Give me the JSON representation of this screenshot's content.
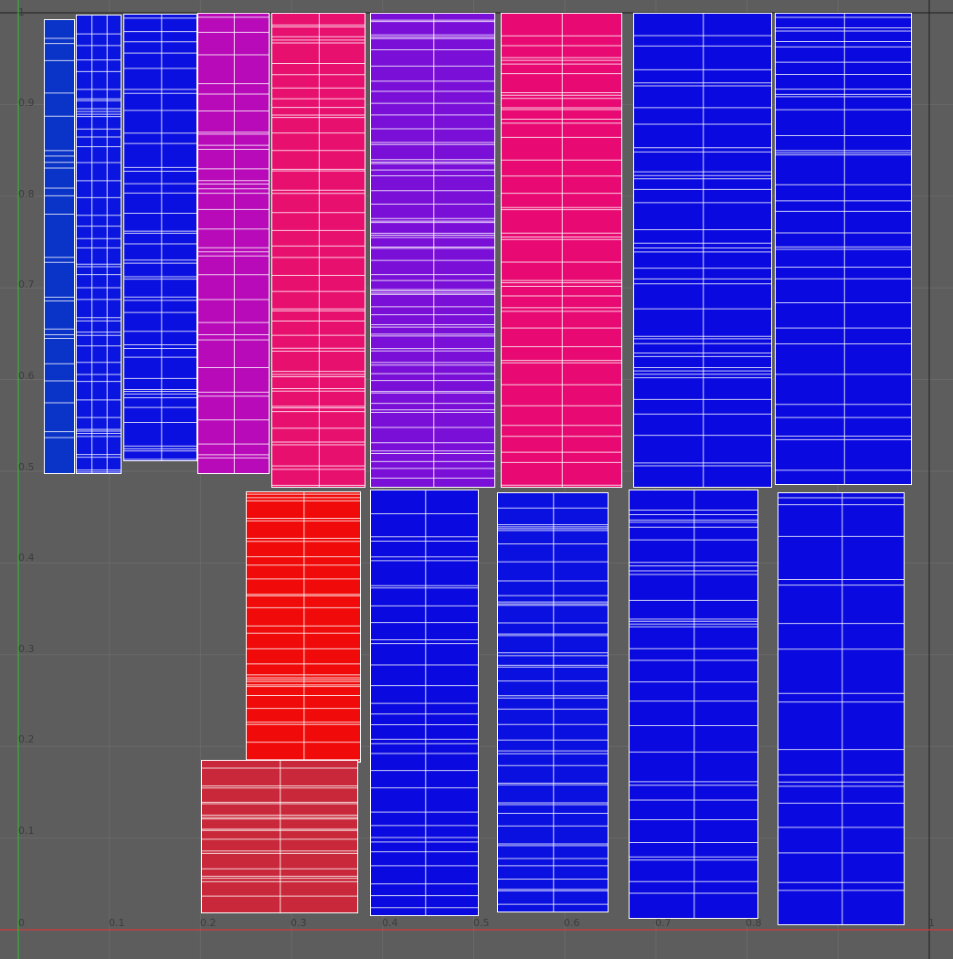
{
  "viewport": {
    "background": "#5d5d5d",
    "grid_color": "#6a6a6a",
    "u_axis_color": "#d23b3b",
    "v_axis_color": "#35b23a",
    "frame_color": "#1d1d1d",
    "edge_color": "#ffffff"
  },
  "axis_labels": {
    "u": [
      "0",
      "0.1",
      "0.2",
      "0.3",
      "0.4",
      "0.5",
      "0.6",
      "0.7",
      "0.8",
      "1"
    ],
    "v": [
      "1",
      "0.9",
      "0.8",
      "0.7",
      "0.6",
      "0.5",
      "0.4",
      "0.3",
      "0.2",
      "0.1"
    ]
  },
  "uv_islands": [
    {
      "name": "uv-island-column-1",
      "color": "#0a33c8",
      "u": [
        0.028,
        0.062
      ],
      "v": [
        0.497,
        0.993
      ],
      "columns": 1,
      "row_lines": 24
    },
    {
      "name": "uv-island-column-2",
      "color": "#0a16e0",
      "u": [
        0.063,
        0.113
      ],
      "v": [
        0.497,
        0.998
      ],
      "columns": 3,
      "row_lines": 44
    },
    {
      "name": "uv-island-column-3",
      "color": "#0a10e0",
      "u": [
        0.115,
        0.197
      ],
      "v": [
        0.511,
        0.999
      ],
      "columns": 2,
      "row_lines": 40
    },
    {
      "name": "uv-island-column-4",
      "color": "#b80ab8",
      "u": [
        0.197,
        0.276
      ],
      "v": [
        0.497,
        1.0
      ],
      "columns": 2,
      "row_lines": 32
    },
    {
      "name": "uv-island-column-5",
      "color": "#e8106e",
      "u": [
        0.278,
        0.381
      ],
      "v": [
        0.482,
        1.0
      ],
      "columns": 2,
      "row_lines": 44
    },
    {
      "name": "uv-island-column-6",
      "color": "#7a10d8",
      "u": [
        0.386,
        0.524
      ],
      "v": [
        0.482,
        1.0
      ],
      "columns": 2,
      "row_lines": 60
    },
    {
      "name": "uv-island-column-7",
      "color": "#e80a72",
      "u": [
        0.53,
        0.663
      ],
      "v": [
        0.482,
        1.0
      ],
      "columns": 2,
      "row_lines": 40
    },
    {
      "name": "uv-island-column-8",
      "color": "#0a0ae0",
      "u": [
        0.675,
        0.827
      ],
      "v": [
        0.482,
        1.0
      ],
      "columns": 2,
      "row_lines": 36
    },
    {
      "name": "uv-island-column-9",
      "color": "#0a0ae0",
      "u": [
        0.83,
        0.981
      ],
      "v": [
        0.485,
        1.0
      ],
      "columns": 2,
      "row_lines": 32
    },
    {
      "name": "uv-island-red-strip",
      "color": "#f00a0a",
      "u": [
        0.25,
        0.376
      ],
      "v": [
        0.182,
        0.478
      ],
      "columns": 2,
      "row_lines": 30
    },
    {
      "name": "uv-island-dark-red-block",
      "color": "#c8283a",
      "u": [
        0.201,
        0.373
      ],
      "v": [
        0.018,
        0.185
      ],
      "columns": 2,
      "row_lines": 18
    },
    {
      "name": "uv-island-lower-column-1",
      "color": "#0a0ae0",
      "u": [
        0.386,
        0.506
      ],
      "v": [
        0.015,
        0.48
      ],
      "columns": 2,
      "row_lines": 30
    },
    {
      "name": "uv-island-lower-column-2",
      "color": "#0a10e0",
      "u": [
        0.526,
        0.648
      ],
      "v": [
        0.019,
        0.477
      ],
      "columns": 2,
      "row_lines": 42
    },
    {
      "name": "uv-island-lower-column-3",
      "color": "#0a0ae0",
      "u": [
        0.67,
        0.812
      ],
      "v": [
        0.012,
        0.48
      ],
      "columns": 2,
      "row_lines": 30
    },
    {
      "name": "uv-island-lower-column-4",
      "color": "#0a0ae0",
      "u": [
        0.833,
        0.973
      ],
      "v": [
        0.005,
        0.477
      ],
      "columns": 2,
      "row_lines": 18
    }
  ]
}
